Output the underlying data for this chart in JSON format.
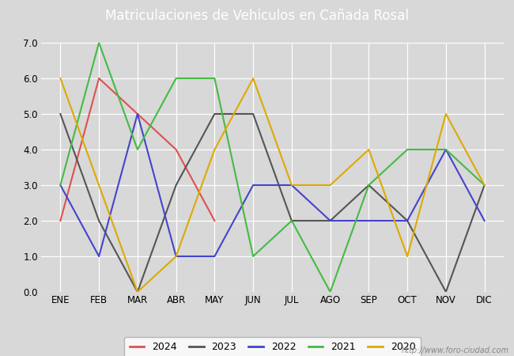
{
  "title": "Matriculaciones de Vehiculos en Cañada Rosal",
  "months": [
    "ENE",
    "FEB",
    "MAR",
    "ABR",
    "MAY",
    "JUN",
    "JUL",
    "AGO",
    "SEP",
    "OCT",
    "NOV",
    "DIC"
  ],
  "series": {
    "2024": {
      "values": [
        2,
        6,
        5,
        4,
        2,
        null,
        null,
        null,
        null,
        null,
        null,
        null
      ],
      "color": "#e05050",
      "linewidth": 1.5
    },
    "2023": {
      "values": [
        5,
        2,
        0,
        3,
        5,
        5,
        2,
        2,
        3,
        2,
        0,
        3
      ],
      "color": "#555555",
      "linewidth": 1.5
    },
    "2022": {
      "values": [
        3,
        1,
        5,
        1,
        1,
        3,
        3,
        2,
        2,
        2,
        4,
        2
      ],
      "color": "#4444cc",
      "linewidth": 1.5
    },
    "2021": {
      "values": [
        3,
        7,
        4,
        6,
        6,
        1,
        2,
        0,
        3,
        4,
        4,
        3
      ],
      "color": "#44bb44",
      "linewidth": 1.5
    },
    "2020": {
      "values": [
        6,
        3,
        0,
        1,
        4,
        6,
        3,
        3,
        4,
        1,
        5,
        3
      ],
      "color": "#ddaa00",
      "linewidth": 1.5
    }
  },
  "ylim": [
    0,
    7.0
  ],
  "yticks": [
    0.0,
    1.0,
    2.0,
    3.0,
    4.0,
    5.0,
    6.0,
    7.0
  ],
  "legend_order": [
    "2024",
    "2023",
    "2022",
    "2021",
    "2020"
  ],
  "plot_area_color": "#d8d8d8",
  "title_bg_color": "#4472c4",
  "title_text_color": "#ffffff",
  "watermark": "http://www.foro-ciudad.com",
  "title_fontsize": 12,
  "grid_color": "#ffffff",
  "fig_width": 6.5,
  "fig_height": 4.5,
  "dpi": 100
}
